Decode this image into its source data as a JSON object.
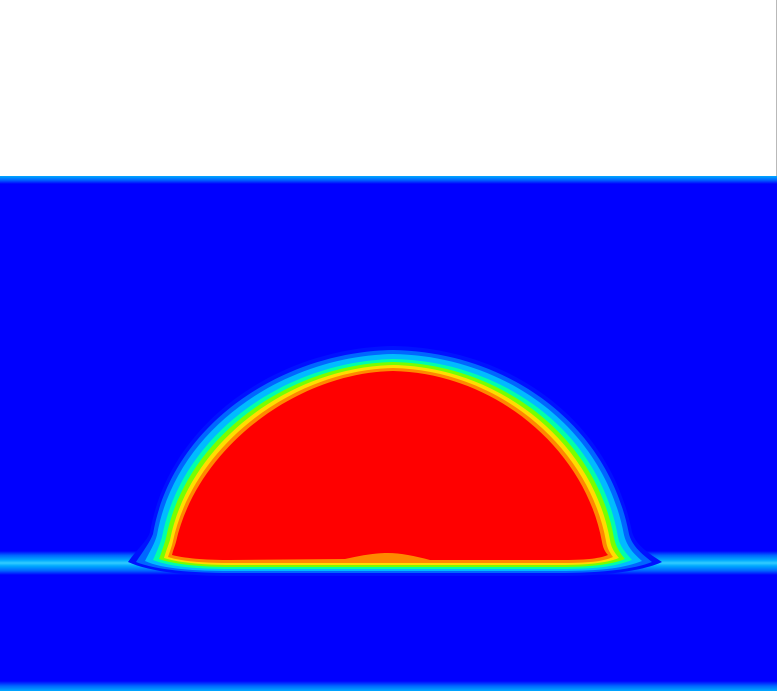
{
  "figure": {
    "kind": "phase-field contour rendering",
    "colormap": "jet",
    "colors": {
      "background": "#ffffff",
      "phase_low": "#0000ff",
      "phase_high": "#ff0000",
      "interface_stops": [
        "#0011ff",
        "#0066ff",
        "#00bbff",
        "#00ffaa",
        "#77ff00",
        "#ffdd00",
        "#ff8800",
        "#ff2200"
      ]
    },
    "regions": [
      "empty-upper-region",
      "fluid-domain",
      "substrate-film",
      "droplet"
    ]
  }
}
